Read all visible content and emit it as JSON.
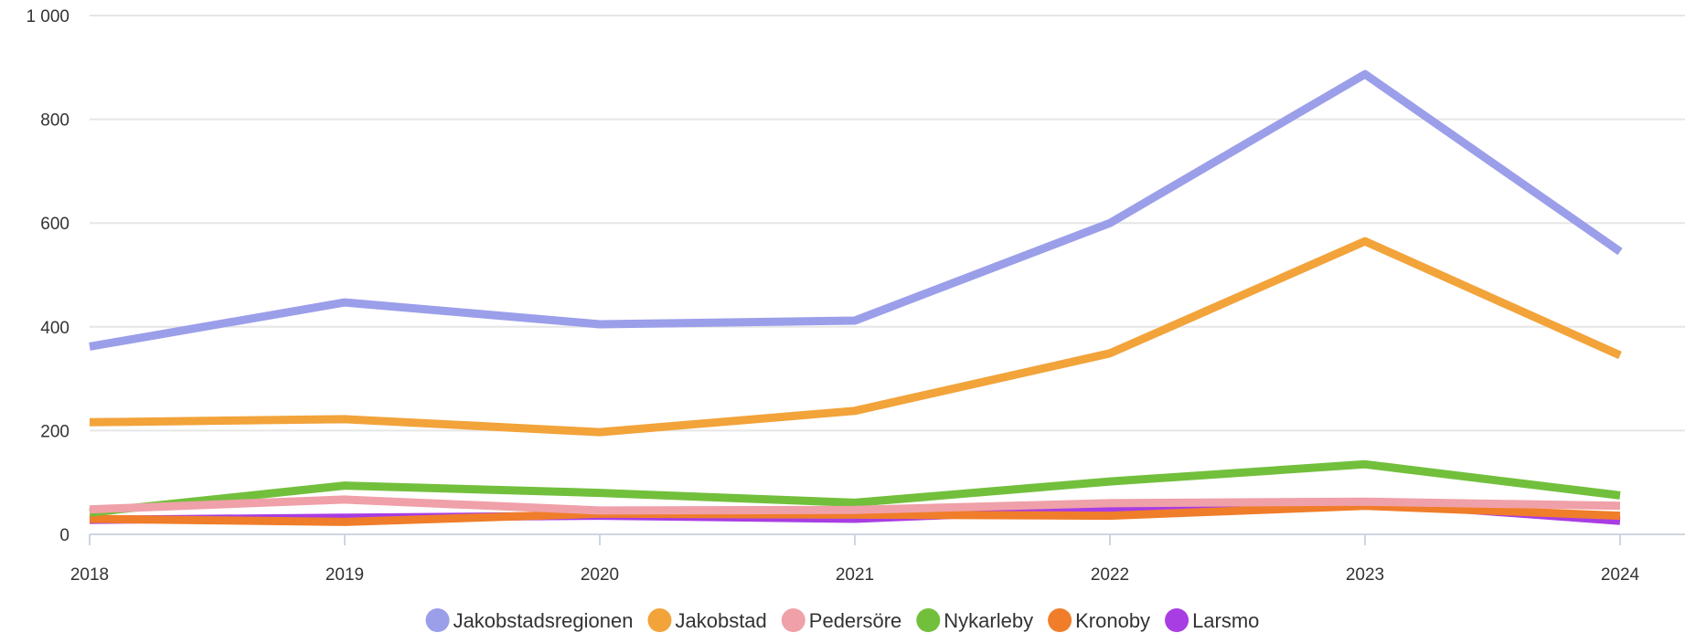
{
  "chart_data": {
    "type": "line",
    "title": "",
    "xlabel": "",
    "ylabel": "",
    "x": [
      "2018",
      "2019",
      "2020",
      "2021",
      "2022",
      "2023",
      "2024"
    ],
    "ylim": [
      0,
      1000
    ],
    "yticks": [
      0,
      200,
      400,
      600,
      800,
      1000
    ],
    "ytick_labels": [
      "0",
      "200",
      "400",
      "600",
      "800",
      "1 000"
    ],
    "grid": true,
    "legend_position": "bottom-center",
    "series": [
      {
        "name": "Jakobstadsregionen",
        "color": "#9b9ee9",
        "values": [
          362,
          447,
          405,
          412,
          600,
          887,
          545
        ]
      },
      {
        "name": "Jakobstad",
        "color": "#f2a33a",
        "values": [
          216,
          222,
          197,
          238,
          349,
          565,
          345
        ]
      },
      {
        "name": "Pedersöre",
        "color": "#f0a0a8",
        "values": [
          48,
          67,
          46,
          47,
          60,
          63,
          55
        ]
      },
      {
        "name": "Nykarleby",
        "color": "#72bf3c",
        "values": [
          42,
          94,
          80,
          61,
          102,
          135,
          75
        ]
      },
      {
        "name": "Kronoby",
        "color": "#f07d2a",
        "values": [
          30,
          24,
          40,
          38,
          36,
          55,
          36
        ]
      },
      {
        "name": "Larsmo",
        "color": "#a83de3",
        "values": [
          28,
          32,
          36,
          30,
          50,
          62,
          26
        ]
      }
    ]
  }
}
